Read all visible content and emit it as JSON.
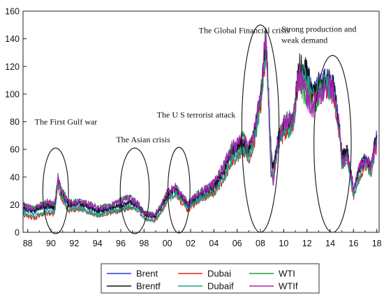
{
  "chart_data": {
    "type": "line",
    "title": "",
    "xlabel": "",
    "ylabel": "",
    "xlim": [
      1987.6,
      2018.2
    ],
    "ylim": [
      0,
      160
    ],
    "y_ticks": [
      0,
      20,
      40,
      60,
      80,
      100,
      120,
      140,
      160
    ],
    "x_tick_values": [
      1988,
      1990,
      1992,
      1994,
      1996,
      1998,
      2000,
      2002,
      2004,
      2006,
      2008,
      2010,
      2012,
      2014,
      2016,
      2018
    ],
    "x_tick_labels": [
      "88",
      "90",
      "92",
      "94",
      "96",
      "98",
      "00",
      "02",
      "04",
      "06",
      "08",
      "10",
      "12",
      "14",
      "16",
      "18"
    ],
    "grid": false,
    "legend_position": "bottom",
    "series": [
      {
        "name": "Brent",
        "color": "#1f3fd6",
        "offset": 0.0,
        "x": [
          1987.6,
          1988.5,
          1989.0,
          1989.8,
          1990.3,
          1990.6,
          1990.9,
          1991.5,
          1992.5,
          1993.5,
          1994.0,
          1995.0,
          1996.0,
          1996.8,
          1997.5,
          1998.0,
          1998.9,
          1999.5,
          2000.0,
          2000.7,
          2001.0,
          2001.8,
          2002.5,
          2003.2,
          2004.0,
          2004.8,
          2005.5,
          2006.5,
          2007.0,
          2007.5,
          2008.0,
          2008.5,
          2008.9,
          2009.1,
          2009.5,
          2010.0,
          2010.8,
          2011.3,
          2012.0,
          2012.5,
          2013.0,
          2013.7,
          2014.3,
          2014.8,
          2015.0,
          2015.5,
          2016.0,
          2016.5,
          2017.0,
          2017.5,
          2018.0
        ],
        "y": [
          17,
          15,
          18,
          19,
          17,
          38,
          28,
          20,
          20,
          17,
          15,
          17,
          19,
          22,
          19,
          13,
          11,
          18,
          26,
          31,
          27,
          19,
          25,
          28,
          32,
          43,
          57,
          65,
          58,
          72,
          95,
          138,
          60,
          45,
          68,
          75,
          80,
          118,
          115,
          100,
          108,
          110,
          105,
          75,
          55,
          58,
          30,
          45,
          53,
          47,
          70
        ]
      },
      {
        "name": "Dubai",
        "color": "#e0241b",
        "offset": -1.0,
        "x": [
          1987.6,
          1988.5,
          1989.0,
          1989.8,
          1990.3,
          1990.6,
          1990.9,
          1991.5,
          1992.5,
          1993.5,
          1994.0,
          1995.0,
          1996.0,
          1996.8,
          1997.5,
          1998.0,
          1998.9,
          1999.5,
          2000.0,
          2000.7,
          2001.0,
          2001.8,
          2002.5,
          2003.2,
          2004.0,
          2004.8,
          2005.5,
          2006.5,
          2007.0,
          2007.5,
          2008.0,
          2008.5,
          2008.9,
          2009.1,
          2009.5,
          2010.0,
          2010.8,
          2011.3,
          2012.0,
          2012.5,
          2013.0,
          2013.7,
          2014.3,
          2014.8,
          2015.0,
          2015.5,
          2016.0,
          2016.5,
          2017.0,
          2017.5,
          2018.0
        ],
        "y": [
          14,
          11,
          13,
          15,
          14,
          36,
          25,
          17,
          18,
          15,
          13,
          15,
          17,
          19,
          17,
          11,
          9,
          16,
          24,
          29,
          25,
          17,
          23,
          26,
          29,
          39,
          52,
          60,
          54,
          68,
          92,
          133,
          57,
          40,
          64,
          72,
          77,
          113,
          110,
          97,
          104,
          106,
          101,
          71,
          51,
          54,
          26,
          41,
          50,
          44,
          65
        ]
      },
      {
        "name": "WTI",
        "color": "#1b9e3e",
        "offset": 1.0,
        "x": [
          1987.6,
          1988.5,
          1989.0,
          1989.8,
          1990.3,
          1990.6,
          1990.9,
          1991.5,
          1992.5,
          1993.5,
          1994.0,
          1995.0,
          1996.0,
          1996.8,
          1997.5,
          1998.0,
          1998.9,
          1999.5,
          2000.0,
          2000.7,
          2001.0,
          2001.8,
          2002.5,
          2003.2,
          2004.0,
          2004.8,
          2005.5,
          2006.5,
          2007.0,
          2007.5,
          2008.0,
          2008.5,
          2008.9,
          2009.1,
          2009.5,
          2010.0,
          2010.8,
          2011.3,
          2012.0,
          2012.5,
          2013.0,
          2013.7,
          2014.3,
          2014.8,
          2015.0,
          2015.5,
          2016.0,
          2016.5,
          2017.0,
          2017.5,
          2018.0
        ],
        "y": [
          19,
          16,
          19,
          21,
          19,
          37,
          30,
          21,
          21,
          19,
          17,
          18,
          22,
          24,
          20,
          13,
          12,
          19,
          28,
          32,
          28,
          20,
          26,
          30,
          34,
          46,
          58,
          67,
          60,
          73,
          96,
          140,
          42,
          35,
          65,
          78,
          82,
          110,
          95,
          88,
          98,
          105,
          100,
          73,
          48,
          55,
          30,
          46,
          52,
          47,
          66
        ]
      },
      {
        "name": "Brentf",
        "color": "#111111",
        "offset": 0.4,
        "x": [
          1987.6,
          1988.5,
          1989.0,
          1989.8,
          1990.3,
          1990.6,
          1990.9,
          1991.5,
          1992.5,
          1993.5,
          1994.0,
          1995.0,
          1996.0,
          1996.8,
          1997.5,
          1998.0,
          1998.9,
          1999.5,
          2000.0,
          2000.7,
          2001.0,
          2001.8,
          2002.5,
          2003.2,
          2004.0,
          2004.8,
          2005.5,
          2006.5,
          2007.0,
          2007.5,
          2008.0,
          2008.5,
          2008.9,
          2009.1,
          2009.5,
          2010.0,
          2010.8,
          2011.3,
          2012.0,
          2012.5,
          2013.0,
          2013.7,
          2014.3,
          2014.8,
          2015.0,
          2015.5,
          2016.0,
          2016.5,
          2017.0,
          2017.5,
          2018.0
        ],
        "y": [
          17,
          15,
          18,
          19,
          17,
          37,
          28,
          20,
          20,
          17,
          15,
          17,
          19,
          22,
          19,
          13,
          11,
          18,
          26,
          31,
          27,
          19,
          25,
          28,
          32,
          43,
          57,
          65,
          58,
          72,
          96,
          138,
          60,
          45,
          68,
          76,
          80,
          120,
          116,
          100,
          108,
          110,
          106,
          76,
          55,
          58,
          31,
          45,
          53,
          48,
          71
        ]
      },
      {
        "name": "Dubaif",
        "color": "#1fa38a",
        "offset": -0.5,
        "x": [
          1987.6,
          1988.5,
          1989.0,
          1989.8,
          1990.3,
          1990.6,
          1990.9,
          1991.5,
          1992.5,
          1993.5,
          1994.0,
          1995.0,
          1996.0,
          1996.8,
          1997.5,
          1998.0,
          1998.9,
          1999.5,
          2000.0,
          2000.7,
          2001.0,
          2001.8,
          2002.5,
          2003.2,
          2004.0,
          2004.8,
          2005.5,
          2006.5,
          2007.0,
          2007.5,
          2008.0,
          2008.5,
          2008.9,
          2009.1,
          2009.5,
          2010.0,
          2010.8,
          2011.3,
          2012.0,
          2012.5,
          2013.0,
          2013.7,
          2014.3,
          2014.8,
          2015.0,
          2015.5,
          2016.0,
          2016.5,
          2017.0,
          2017.5,
          2018.0
        ],
        "y": [
          15,
          12,
          14,
          16,
          15,
          36,
          26,
          17,
          18,
          15,
          13,
          15,
          17,
          19,
          17,
          11,
          9,
          16,
          24,
          29,
          25,
          17,
          23,
          26,
          29,
          39,
          52,
          60,
          54,
          68,
          92,
          133,
          57,
          40,
          64,
          72,
          77,
          113,
          110,
          97,
          104,
          106,
          101,
          71,
          51,
          54,
          26,
          41,
          50,
          44,
          65
        ]
      },
      {
        "name": "WTIf",
        "color": "#b01fb8",
        "offset": 0.8,
        "x": [
          1987.6,
          1988.5,
          1989.0,
          1989.8,
          1990.3,
          1990.6,
          1990.9,
          1991.5,
          1992.5,
          1993.5,
          1994.0,
          1995.0,
          1996.0,
          1996.8,
          1997.5,
          1998.0,
          1998.9,
          1999.5,
          2000.0,
          2000.7,
          2001.0,
          2001.8,
          2002.5,
          2003.2,
          2004.0,
          2004.8,
          2005.5,
          2006.5,
          2007.0,
          2007.5,
          2008.0,
          2008.5,
          2008.9,
          2009.1,
          2009.5,
          2010.0,
          2010.8,
          2011.3,
          2012.0,
          2012.5,
          2013.0,
          2013.7,
          2014.3,
          2014.8,
          2015.0,
          2015.5,
          2016.0,
          2016.5,
          2017.0,
          2017.5,
          2018.0
        ],
        "y": [
          19,
          16,
          19,
          21,
          19,
          39,
          30,
          21,
          21,
          19,
          17,
          18,
          22,
          24,
          20,
          13,
          12,
          19,
          28,
          33,
          28,
          20,
          26,
          30,
          35,
          46,
          60,
          68,
          60,
          74,
          98,
          145,
          42,
          35,
          65,
          78,
          82,
          112,
          97,
          88,
          98,
          105,
          101,
          74,
          48,
          55,
          30,
          46,
          52,
          47,
          67
        ]
      }
    ],
    "annotations": [
      {
        "text": "The First Gulf war",
        "x": 1988.6,
        "y": 78
      },
      {
        "text": "The Asian crisis",
        "x": 1995.6,
        "y": 65
      },
      {
        "text": "The U S terrorist attack",
        "x": 1999.1,
        "y": 83
      },
      {
        "text": "The Global Financial crisis",
        "x": 2002.7,
        "y": 144
      },
      {
        "text": "Strong production and",
        "x": 2009.8,
        "y": 145
      },
      {
        "text": "weak demand",
        "x": 2009.8,
        "y": 137
      }
    ],
    "ellipses": [
      {
        "event": "The First Gulf war",
        "cx": 1990.4,
        "cy": 30,
        "rx": 1.1,
        "ry": 31
      },
      {
        "event": "The Asian crisis",
        "cx": 1997.2,
        "cy": 30,
        "rx": 1.25,
        "ry": 31
      },
      {
        "event": "The U S terrorist attack",
        "cx": 2001.0,
        "cy": 30.5,
        "rx": 0.95,
        "ry": 31
      },
      {
        "event": "The Global Financial crisis",
        "cx": 2008.0,
        "cy": 75,
        "rx": 1.6,
        "ry": 75
      },
      {
        "event": "Strong production and weak demand",
        "cx": 2014.2,
        "cy": 64,
        "rx": 1.6,
        "ry": 64
      }
    ]
  }
}
